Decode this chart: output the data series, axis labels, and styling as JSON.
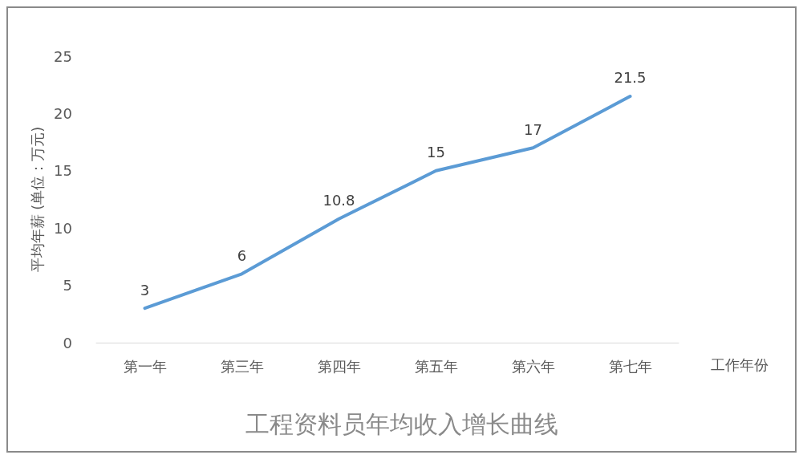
{
  "chart_data": {
    "type": "line",
    "title": "工程资料员年均收入增长曲线",
    "xlabel": "工作年份",
    "ylabel": "平均年薪 (单位：万元)",
    "categories": [
      "第一年",
      "第三年",
      "第四年",
      "第五年",
      "第六年",
      "第七年"
    ],
    "series": [
      {
        "color": "#5b9bd5",
        "values": [
          3,
          6,
          10.8,
          15,
          17,
          21.5
        ]
      }
    ],
    "ylim": [
      0,
      25
    ],
    "yticks": [
      0,
      5,
      10,
      15,
      20,
      25
    ],
    "grid": false,
    "marker": "none",
    "line_style": "solid",
    "data_labels": true
  }
}
